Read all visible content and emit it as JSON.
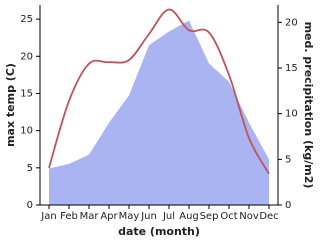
{
  "chart_data": {
    "type": "line-area",
    "x_label": "date (month)",
    "y_label": "max temp (C)",
    "y2_label": "med. precipitation (kg/m2)",
    "categories": [
      "Jan",
      "Feb",
      "Mar",
      "Apr",
      "May",
      "Jun",
      "Jul",
      "Aug",
      "Sep",
      "Oct",
      "Nov",
      "Dec"
    ],
    "series": [
      {
        "name": "max temp",
        "color": "#c0525a",
        "values": [
          5,
          14,
          19,
          19.2,
          19.5,
          23,
          26.3,
          23.5,
          23.2,
          17.5,
          9,
          4.2
        ]
      },
      {
        "name": "med. precipitation",
        "color": "#aab4f2",
        "axis": "y2",
        "values": [
          4,
          4.5,
          5.5,
          9,
          12,
          17.5,
          19,
          20.2,
          15.5,
          13.5,
          9,
          5
        ]
      }
    ],
    "ylim": [
      0,
      26.9
    ],
    "yticks": [
      0,
      5,
      10,
      15,
      20,
      25
    ],
    "y2lim": [
      0,
      21.9
    ],
    "y2ticks": [
      0,
      5,
      10,
      15,
      20
    ]
  }
}
